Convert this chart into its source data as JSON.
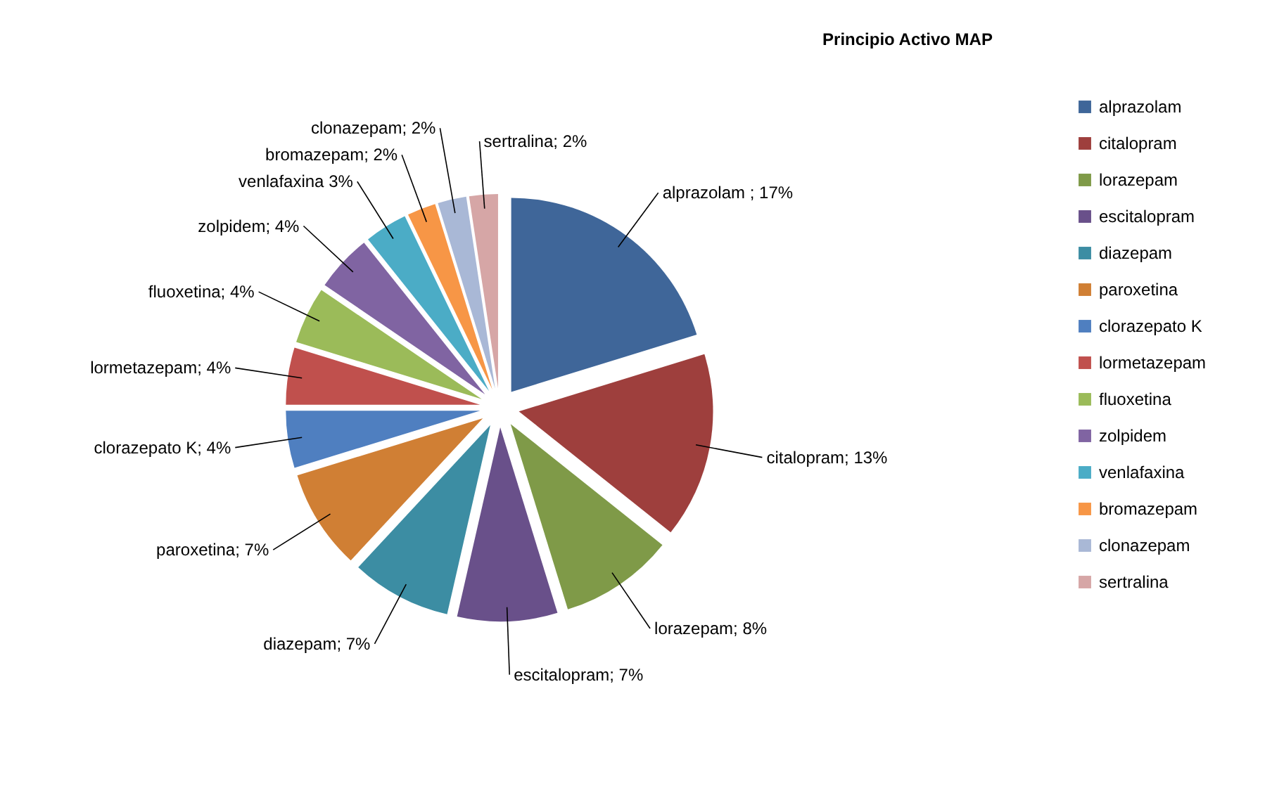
{
  "chart_data": {
    "type": "pie",
    "title": "Principio Activo MAP",
    "categories": [
      "alprazolam",
      "citalopram",
      "lorazepam",
      "escitalopram",
      "diazepam",
      "paroxetina",
      "clorazepato K",
      "lormetazepam",
      "fluoxetina",
      "zolpidem",
      "venlafaxina",
      "bromazepam",
      "clonazepam",
      "sertralina"
    ],
    "values": [
      17,
      13,
      8,
      7,
      7,
      7,
      4,
      4,
      4,
      4,
      3,
      2,
      2,
      2
    ],
    "value_labels": [
      "alprazolam ; 17%",
      "citalopram; 13%",
      "lorazepam; 8%",
      "escitalopram; 7%",
      "diazepam; 7%",
      "paroxetina; 7%",
      "clorazepato K; 4%",
      "lormetazepam; 4%",
      "fluoxetina; 4%",
      "zolpidem; 4%",
      "venlafaxina 3%",
      "bromazepam; 2%",
      "clonazepam; 2%",
      "sertralina; 2%"
    ],
    "colors": [
      "#3f6699",
      "#9e3f3d",
      "#7f9a48",
      "#69508a",
      "#3c8da3",
      "#d07f34",
      "#4f7fc0",
      "#c0504d",
      "#9bbb59",
      "#8064a2",
      "#4bacc6",
      "#f79646",
      "#a9b8d6",
      "#d6a6a6"
    ],
    "legend": "right"
  }
}
